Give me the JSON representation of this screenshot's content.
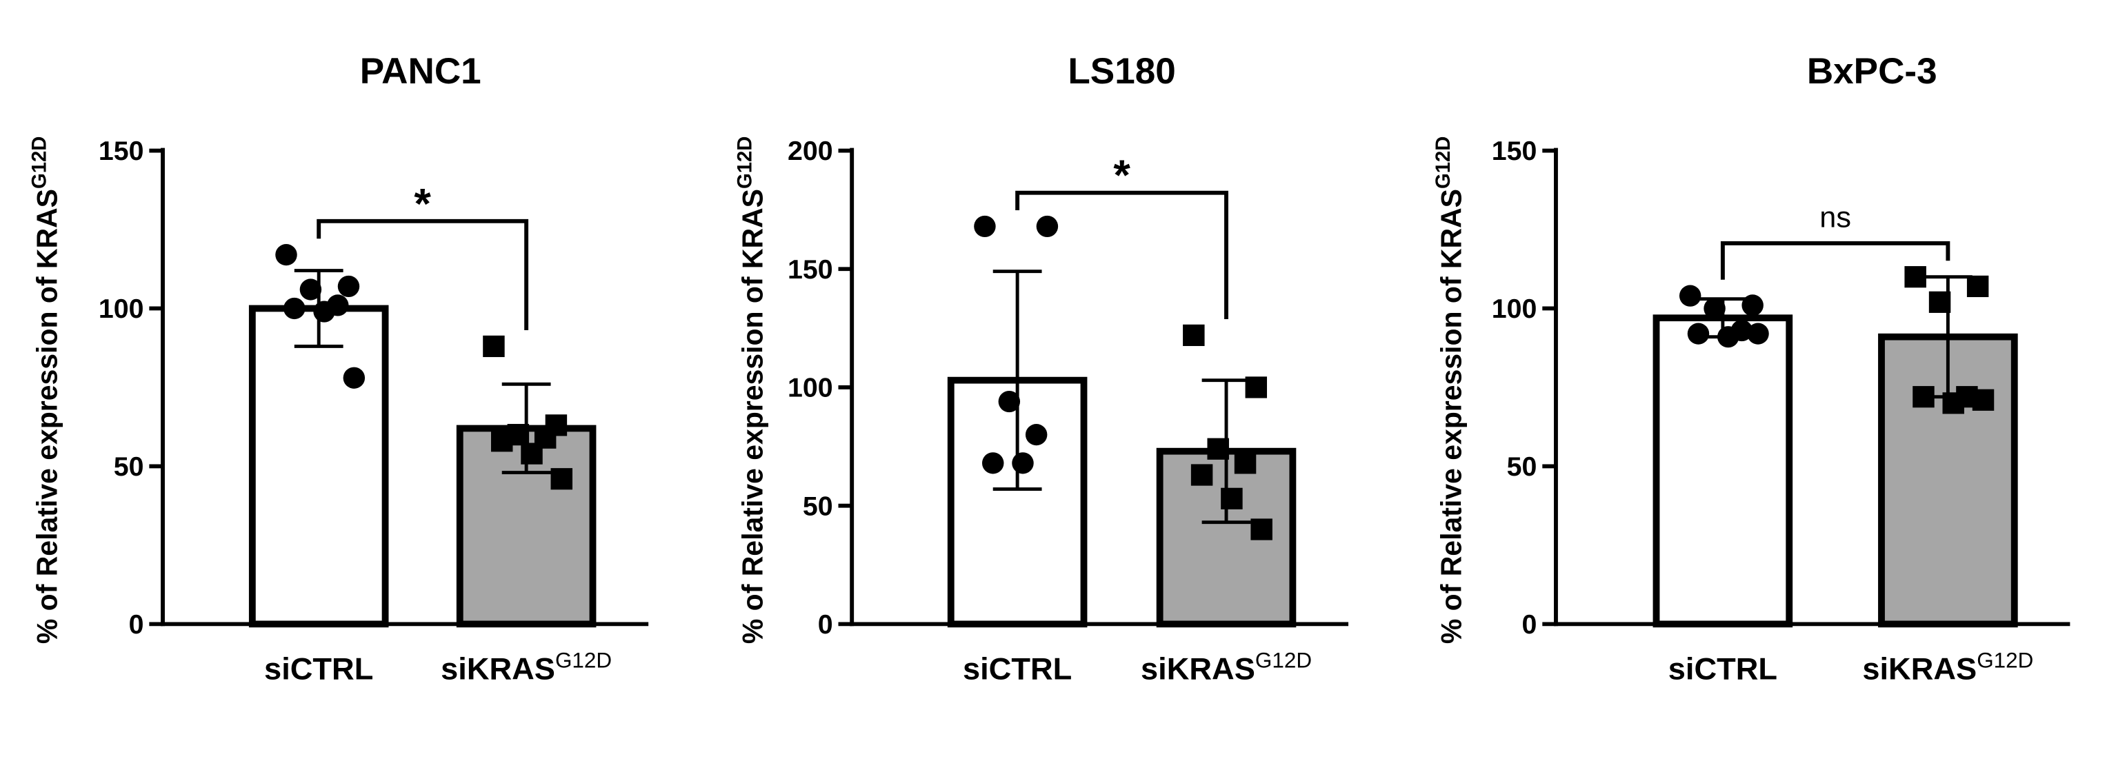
{
  "chart_data": [
    {
      "type": "bar",
      "title": "PANC1",
      "y_label": "% of Relative expression of KRAS",
      "y_label_superscript": "G12D",
      "categories": [
        "siCTRL",
        "siKRAS"
      ],
      "category_superscripts": [
        null,
        "G12D"
      ],
      "values": [
        100,
        62
      ],
      "errors": [
        12,
        14
      ],
      "points": [
        [
          117,
          107,
          106,
          101,
          100,
          99,
          78
        ],
        [
          88,
          63,
          60,
          59,
          58,
          54,
          46
        ]
      ],
      "colors": [
        "#ffffff",
        "#a6a6a6"
      ],
      "markers": [
        "circle",
        "square"
      ],
      "ylim": [
        0,
        150
      ],
      "yticks": [
        0,
        50,
        100,
        150
      ],
      "annotation": "*"
    },
    {
      "type": "bar",
      "title": "LS180",
      "y_label": "% of Relative expression of KRAS",
      "y_label_superscript": "G12D",
      "categories": [
        "siCTRL",
        "siKRAS"
      ],
      "category_superscripts": [
        null,
        "G12D"
      ],
      "values": [
        103,
        73
      ],
      "errors": [
        46,
        30
      ],
      "points": [
        [
          168,
          168,
          94,
          80,
          68,
          68
        ],
        [
          122,
          100,
          74,
          68,
          63,
          53,
          40
        ]
      ],
      "colors": [
        "#ffffff",
        "#a6a6a6"
      ],
      "markers": [
        "circle",
        "square"
      ],
      "ylim": [
        0,
        200
      ],
      "yticks": [
        0,
        50,
        100,
        150,
        200
      ],
      "annotation": "*"
    },
    {
      "type": "bar",
      "title": "BxPC-3",
      "y_label": "% of Relative expression of KRAS",
      "y_label_superscript": "G12D",
      "categories": [
        "siCTRL",
        "siKRAS"
      ],
      "category_superscripts": [
        null,
        "G12D"
      ],
      "values": [
        97,
        91
      ],
      "errors": [
        6,
        19
      ],
      "points": [
        [
          104,
          101,
          100,
          93,
          92,
          91,
          92
        ],
        [
          110,
          107,
          102,
          72,
          72,
          70,
          71
        ]
      ],
      "colors": [
        "#ffffff",
        "#a6a6a6"
      ],
      "markers": [
        "circle",
        "square"
      ],
      "ylim": [
        0,
        150
      ],
      "yticks": [
        0,
        50,
        100,
        150
      ],
      "annotation": "ns"
    }
  ]
}
